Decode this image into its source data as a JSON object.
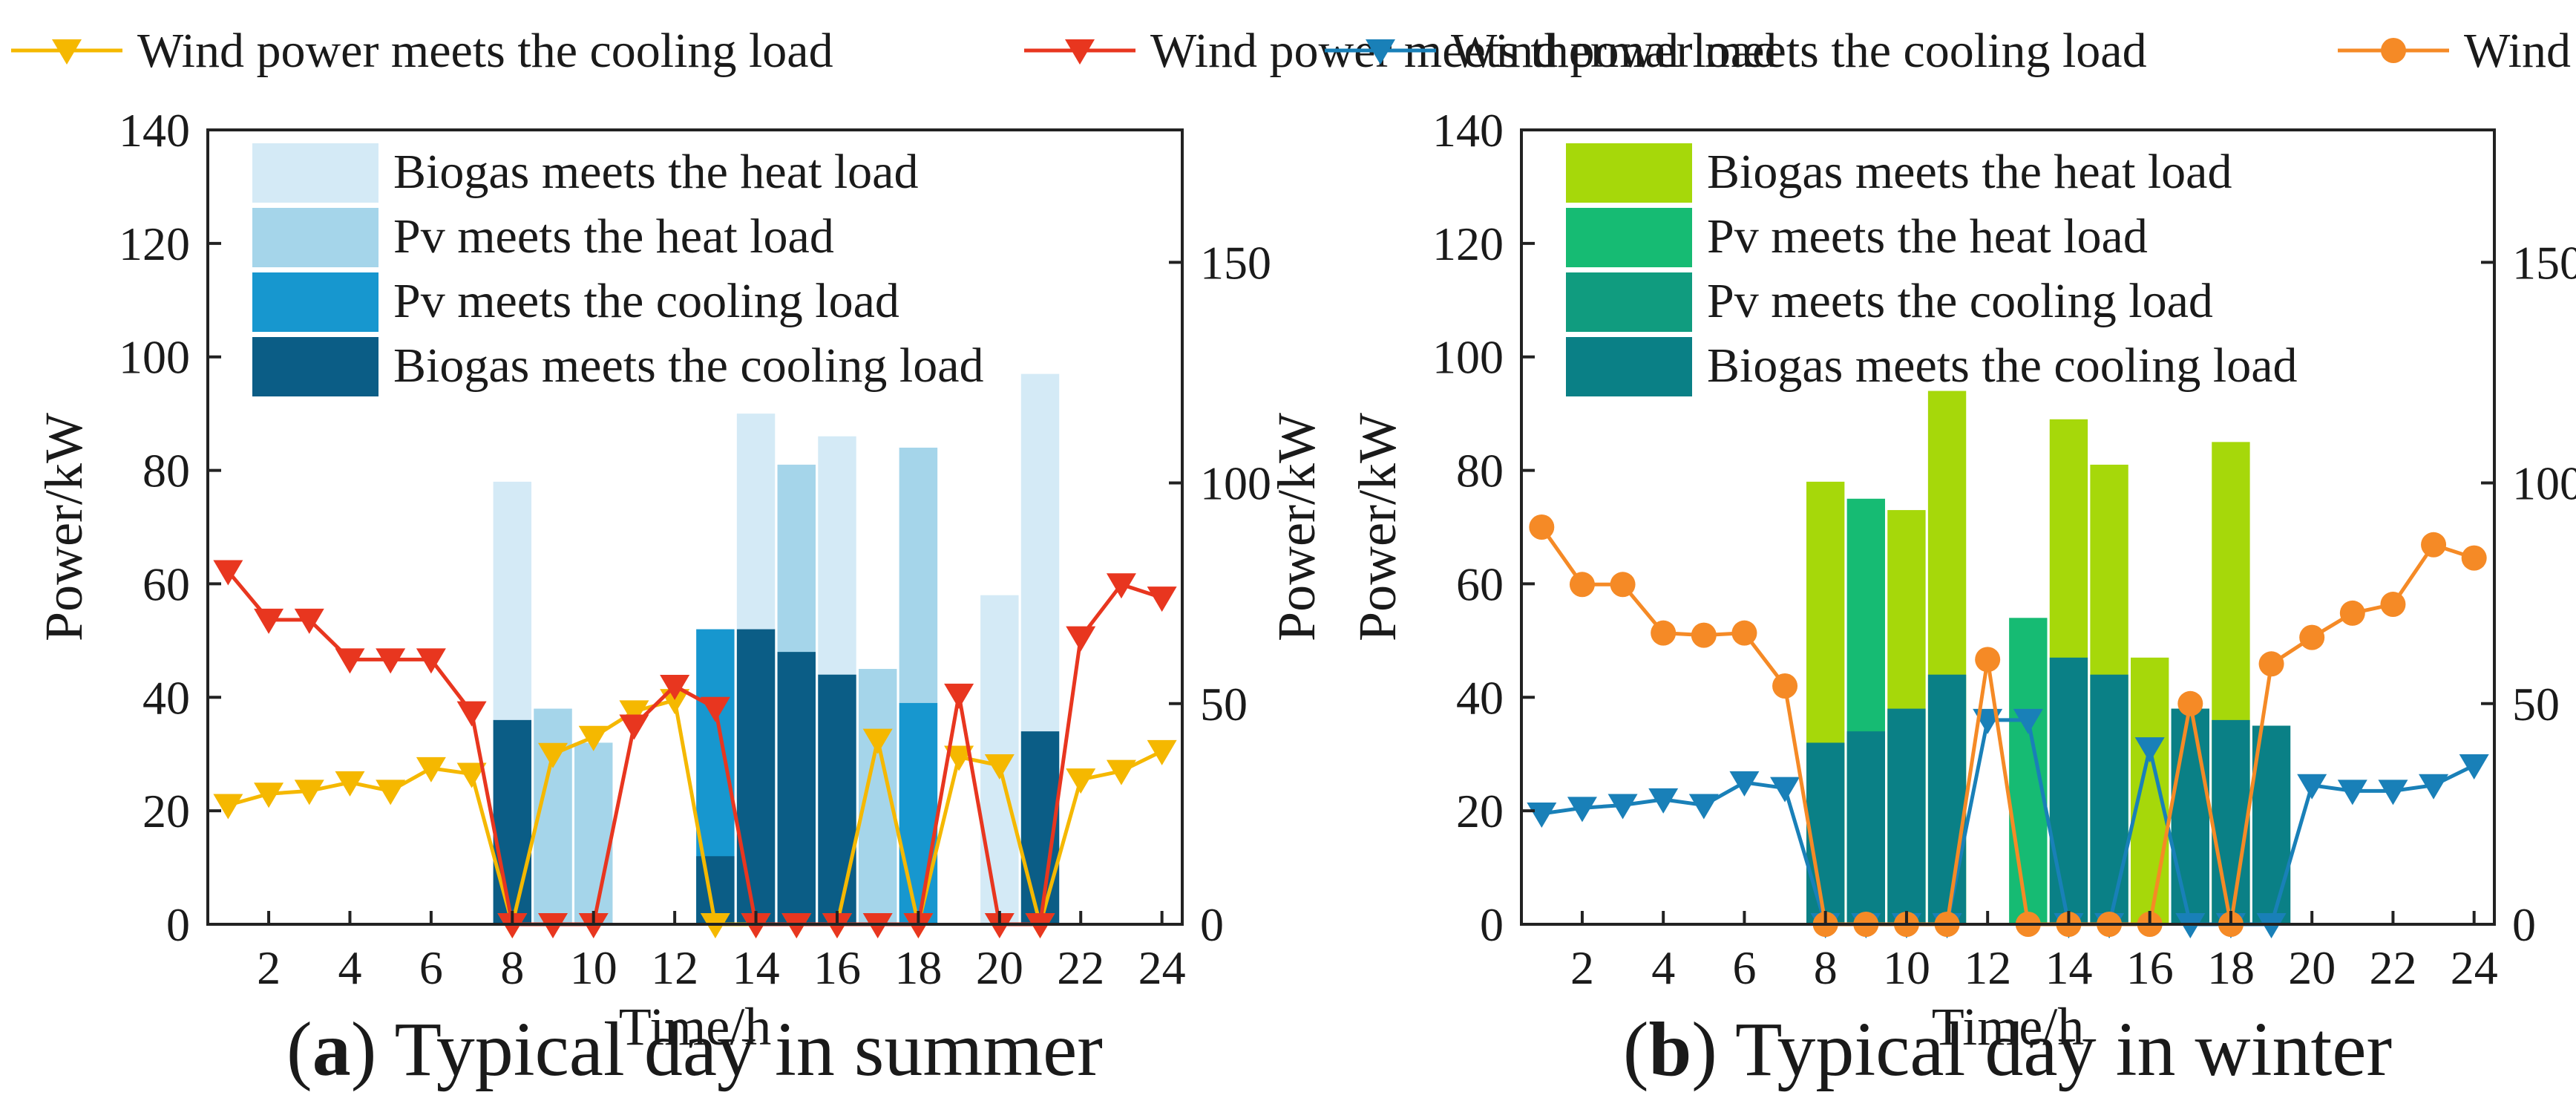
{
  "chart_data": [
    {
      "type": "bar",
      "title": "",
      "caption_letter": "a",
      "caption_text": "Typical day in summer",
      "xlabel": "Time/h",
      "ylabel": "Power/kW",
      "y2label": "Power/kW",
      "xlim": [
        0.5,
        24.5
      ],
      "ylim": [
        0,
        140
      ],
      "y2lim": [
        0,
        180
      ],
      "xticks": [
        2,
        4,
        6,
        8,
        10,
        12,
        14,
        16,
        18,
        20,
        22,
        24
      ],
      "yticks": [
        0,
        20,
        40,
        60,
        80,
        100,
        120,
        140
      ],
      "y2ticks": [
        0,
        50,
        100,
        150
      ],
      "grid": false,
      "legend_bars": "top-left",
      "legend_lines": "top",
      "bar_hours": [
        8,
        9,
        10,
        13,
        14,
        15,
        16,
        17,
        18,
        20,
        21
      ],
      "bar_layers": [
        {
          "name": "Biogas meets the heat load",
          "color": "#d4eaf6",
          "values": [
            78,
            38,
            32,
            0,
            90,
            81,
            86,
            45,
            84,
            58,
            97
          ]
        },
        {
          "name": "Pv meets the heat load",
          "color": "#a5d5ea",
          "values": [
            0,
            38,
            32,
            0,
            0,
            81,
            0,
            45,
            84,
            0,
            0
          ]
        },
        {
          "name": "Pv meets the cooling load",
          "color": "#1797cf",
          "values": [
            0,
            0,
            0,
            52,
            0,
            0,
            0,
            0,
            39,
            0,
            0
          ]
        },
        {
          "name": "Biogas meets the cooling load",
          "color": "#0b5d86",
          "values": [
            36,
            0,
            0,
            12,
            52,
            48,
            44,
            0,
            0,
            0,
            34
          ]
        }
      ],
      "line_series": [
        {
          "name": "Wind power meets the cooling load",
          "color": "#f5b800",
          "marker": "triangle-down",
          "axis": "left",
          "x": [
            1,
            2,
            3,
            4,
            5,
            6,
            7,
            8,
            9,
            10,
            11,
            12,
            13,
            14,
            15,
            16,
            17,
            18,
            19,
            20,
            21,
            22,
            23,
            24
          ],
          "values": [
            21,
            23,
            23.5,
            25,
            23.5,
            27.5,
            26.5,
            0,
            30,
            33,
            37.5,
            39.5,
            0,
            0,
            0,
            0,
            32.5,
            0,
            29.5,
            28,
            0,
            25.5,
            27,
            30.5
          ]
        },
        {
          "name": "Wind power meets thermal load",
          "color": "#e8361f",
          "marker": "triangle-down",
          "axis": "right",
          "x": [
            1,
            2,
            3,
            4,
            5,
            6,
            7,
            8,
            9,
            10,
            11,
            12,
            13,
            14,
            15,
            16,
            17,
            18,
            19,
            20,
            21,
            22,
            23,
            24
          ],
          "values": [
            80,
            69,
            69,
            60,
            60,
            60,
            48,
            0,
            0,
            0,
            45,
            54,
            49,
            0,
            0,
            0,
            0,
            0,
            52,
            0,
            0,
            65,
            77,
            74
          ]
        }
      ]
    },
    {
      "type": "bar",
      "title": "",
      "caption_letter": "b",
      "caption_text": "Typical day in winter",
      "xlabel": "Time/h",
      "ylabel": "Power/kW",
      "y2label": "Power/kW",
      "xlim": [
        0.5,
        24.5
      ],
      "ylim": [
        0,
        140
      ],
      "y2lim": [
        0,
        180
      ],
      "xticks": [
        2,
        4,
        6,
        8,
        10,
        12,
        14,
        16,
        18,
        20,
        22,
        24
      ],
      "yticks": [
        0,
        20,
        40,
        60,
        80,
        100,
        120,
        140
      ],
      "y2ticks": [
        0,
        50,
        100,
        150
      ],
      "grid": false,
      "legend_bars": "top-left",
      "legend_lines": "top",
      "bar_hours": [
        8,
        9,
        10,
        11,
        13,
        14,
        15,
        16,
        17,
        18,
        19
      ],
      "bar_layers": [
        {
          "name": "Biogas meets the heat load",
          "color": "#a6d80a",
          "values": [
            78,
            0,
            73,
            94,
            0,
            89,
            81,
            47,
            0,
            85,
            0
          ]
        },
        {
          "name": "Pv meets the heat load",
          "color": "#16bb73",
          "values": [
            0,
            75,
            0,
            0,
            54,
            0,
            0,
            0,
            38,
            0,
            0
          ]
        },
        {
          "name": "Pv meets the cooling load",
          "color": "#109c7f",
          "values": [
            0,
            0,
            0,
            0,
            0,
            0,
            0,
            0,
            0,
            0,
            0
          ]
        },
        {
          "name": "Biogas meets the cooling load",
          "color": "#0a8086",
          "values": [
            32,
            34,
            38,
            44,
            0,
            47,
            44,
            0,
            38,
            36,
            35
          ]
        }
      ],
      "line_series": [
        {
          "name": "Wind power meets the cooling load",
          "color": "#1980b8",
          "marker": "triangle-down",
          "axis": "left",
          "x": [
            1,
            2,
            3,
            4,
            5,
            6,
            7,
            8,
            9,
            10,
            11,
            12,
            13,
            14,
            15,
            16,
            17,
            18,
            19,
            20,
            21,
            22,
            23,
            24
          ],
          "values": [
            19.5,
            20.5,
            21,
            22,
            21,
            25,
            24,
            0,
            0,
            0,
            0,
            36,
            36,
            0,
            0,
            31,
            0,
            0,
            0,
            24.5,
            23.5,
            23.5,
            24.5,
            28
          ]
        },
        {
          "name": "Wind power meets thermal load",
          "color": "#f58a26",
          "marker": "circle",
          "axis": "right",
          "x": [
            1,
            2,
            3,
            4,
            5,
            6,
            7,
            8,
            9,
            10,
            11,
            12,
            13,
            14,
            15,
            16,
            17,
            18,
            19,
            20,
            21,
            22,
            23,
            24
          ],
          "values": [
            90,
            77,
            77,
            66,
            65.5,
            66,
            54,
            0,
            0,
            0,
            0,
            60,
            0,
            0,
            0,
            0,
            50,
            0,
            59,
            65,
            70.5,
            72.5,
            86,
            83
          ]
        }
      ]
    }
  ]
}
